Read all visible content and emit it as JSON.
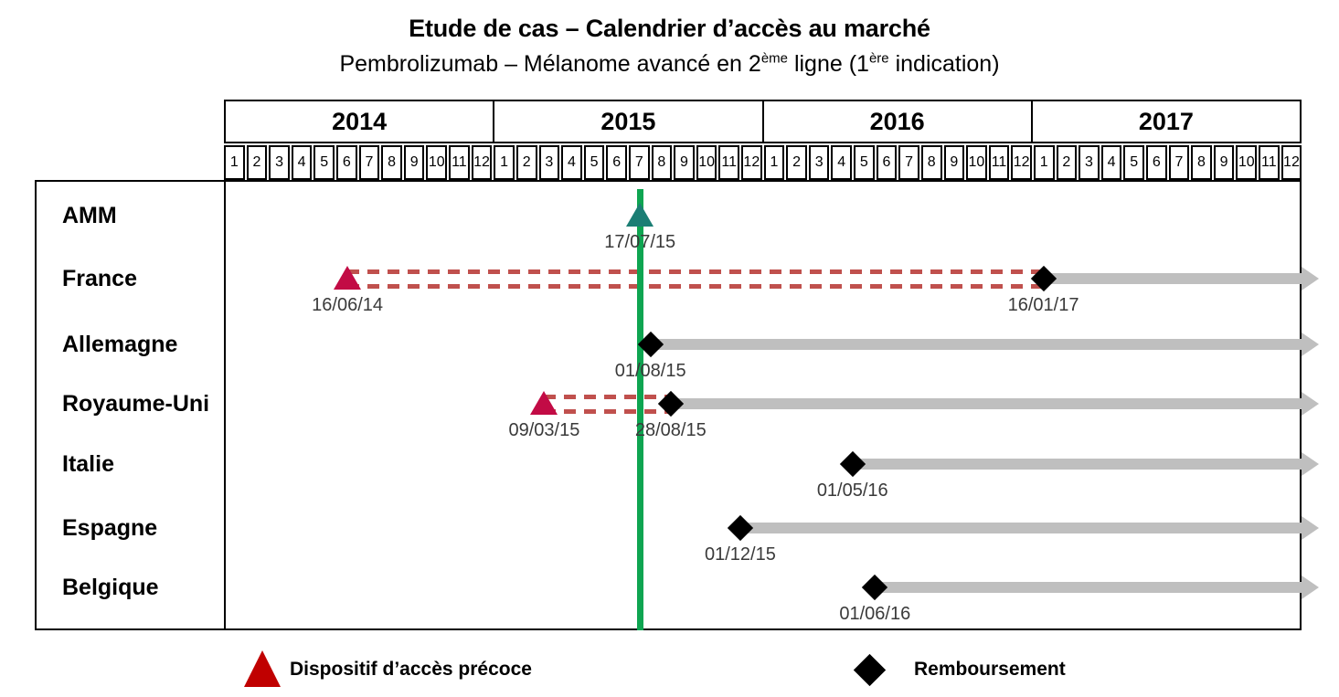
{
  "header": {
    "title": "Etude de cas – Calendrier d’accès au marché",
    "subtitle": {
      "pre": "Pembrolizumab – Mélanome avancé en 2",
      "sup1": "ème",
      "mid": " ligne (1",
      "sup2": "ère",
      "post": " indication)"
    }
  },
  "timeline": {
    "years": [
      "2014",
      "2015",
      "2016",
      "2017"
    ],
    "months": [
      "1",
      "2",
      "3",
      "4",
      "5",
      "6",
      "7",
      "8",
      "9",
      "10",
      "11",
      "12"
    ]
  },
  "chart_data": {
    "type": "gantt-timeline",
    "title": "Etude de cas – Calendrier d’accès au marché",
    "subtitle": "Pembrolizumab – Mélanome avancé en 2ème ligne (1ère indication)",
    "x_axis": {
      "start_year": 2014,
      "end_year": 2017,
      "unit": "month",
      "ticks_per_year": 12
    },
    "amm_line_date": "17/07/15",
    "rows": [
      {
        "label": "AMM",
        "amm_approval": "17/07/15"
      },
      {
        "label": "France",
        "early_access_start": "16/06/14",
        "reimbursement": "16/01/17"
      },
      {
        "label": "Allemagne",
        "reimbursement": "01/08/15"
      },
      {
        "label": "Royaume-Uni",
        "early_access_start": "09/03/15",
        "reimbursement": "28/08/15"
      },
      {
        "label": "Italie",
        "reimbursement": "01/05/16"
      },
      {
        "label": "Espagne",
        "reimbursement": "01/12/15"
      },
      {
        "label": "Belgique",
        "reimbursement": "01/06/16"
      }
    ],
    "colors": {
      "amm_line": "#0ea551",
      "amm_marker": "#1b7e74",
      "early_access_marker": "#c20b45",
      "early_access_dash": "#c0504d",
      "reimbursement_marker": "#000000",
      "bar": "#bfbfbf",
      "legend_triangle": "#c00000",
      "legend_diamond": "#000000"
    }
  },
  "legend": {
    "items": [
      {
        "marker": "triangle",
        "label": "Dispositif d’accès précoce"
      },
      {
        "marker": "diamond",
        "label": "Remboursement"
      }
    ]
  }
}
